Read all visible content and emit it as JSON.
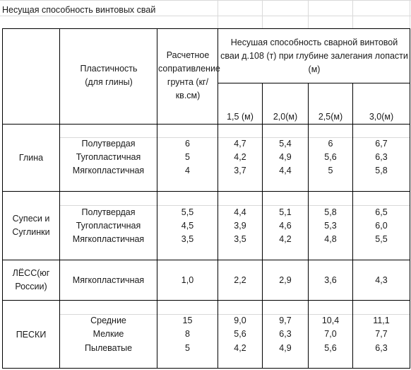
{
  "title": "Несущая способность винтовых свай",
  "header": {
    "plasticity": "Пластичность (для глины)",
    "resistance": "Расчетное сопративление грунта (кг/кв.см)",
    "capacity": "Несушая способность сварной винтовой сваи д.108 (т) при глубине залегания лопасти (м)",
    "depths": [
      "1,5 (м)",
      "2,0(м)",
      "2,5(м)",
      "3,0(м)"
    ]
  },
  "groups": [
    {
      "soil": "Глина",
      "rows": [
        {
          "plasticity": "Полутвердая",
          "resistance": "6",
          "v": [
            "4,7",
            "5,4",
            "6",
            "6,7"
          ]
        },
        {
          "plasticity": "Тугопластичная",
          "resistance": "5",
          "v": [
            "4,2",
            "4,9",
            "5,6",
            "6,3"
          ]
        },
        {
          "plasticity": "Мягкопластичная",
          "resistance": "4",
          "v": [
            "3,7",
            "4,4",
            "5",
            "5,8"
          ]
        }
      ]
    },
    {
      "soil": "Супеси и Суглинки",
      "rows": [
        {
          "plasticity": "Полутвердая",
          "resistance": "5,5",
          "v": [
            "4,4",
            "5,1",
            "5,8",
            "6,5"
          ]
        },
        {
          "plasticity": "Тугопластичная",
          "resistance": "4,5",
          "v": [
            "3,9",
            "4,6",
            "5,3",
            "6,0"
          ]
        },
        {
          "plasticity": "Мягкопластичная",
          "resistance": "3,5",
          "v": [
            "3,5",
            "4,2",
            "4,8",
            "5,5"
          ]
        }
      ]
    },
    {
      "soil": "ЛЁСС(юг России)",
      "rows": [
        {
          "plasticity": "Мягкопластичная",
          "resistance": "1,0",
          "v": [
            "2,2",
            "2,9",
            "3,6",
            "4,3"
          ]
        }
      ]
    },
    {
      "soil": "ПЕСКИ",
      "rows": [
        {
          "plasticity": "Средние",
          "resistance": "15",
          "v": [
            "9,0",
            "9,7",
            "10,4",
            "11,1"
          ]
        },
        {
          "plasticity": "Мелкие",
          "resistance": "8",
          "v": [
            "5,6",
            "6,3",
            "7,0",
            "7,7"
          ]
        },
        {
          "plasticity": "Пылеватые",
          "resistance": "5",
          "v": [
            "4,2",
            "4,9",
            "5,6",
            "6,3"
          ]
        }
      ]
    }
  ]
}
